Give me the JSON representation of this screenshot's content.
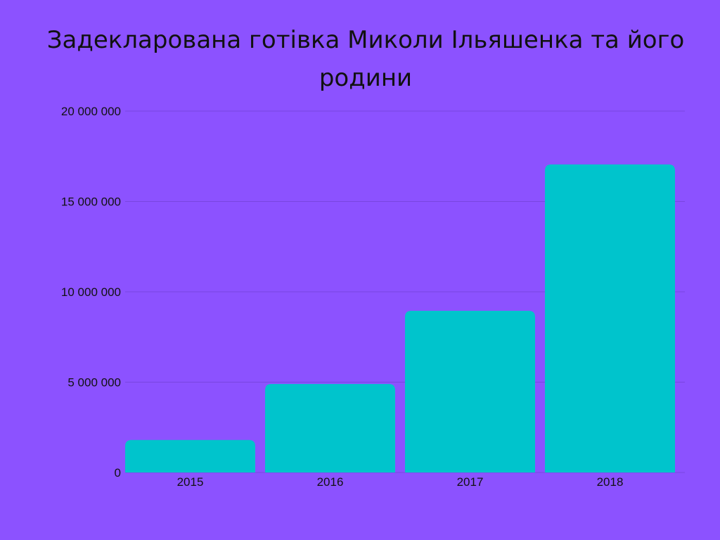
{
  "chart_data": {
    "type": "bar",
    "title": "Задекларована готівка Миколи Ільяшенка та його родини",
    "categories": [
      "2015",
      "2016",
      "2017",
      "2018"
    ],
    "values": [
      1800000,
      4900000,
      8950000,
      17050000
    ],
    "ylim": [
      0,
      20000000
    ],
    "yticks": [
      {
        "value": 0,
        "label": "0"
      },
      {
        "value": 5000000,
        "label": "5 000 000"
      },
      {
        "value": 10000000,
        "label": "10 000 000"
      },
      {
        "value": 15000000,
        "label": "15 000 000"
      },
      {
        "value": 20000000,
        "label": "20 000 000"
      }
    ],
    "grid": true,
    "legend": "none",
    "colors": {
      "background": "#8c52ff",
      "bar": "#00c4cc",
      "grid": "#7a45e0",
      "text": "#111111"
    }
  }
}
